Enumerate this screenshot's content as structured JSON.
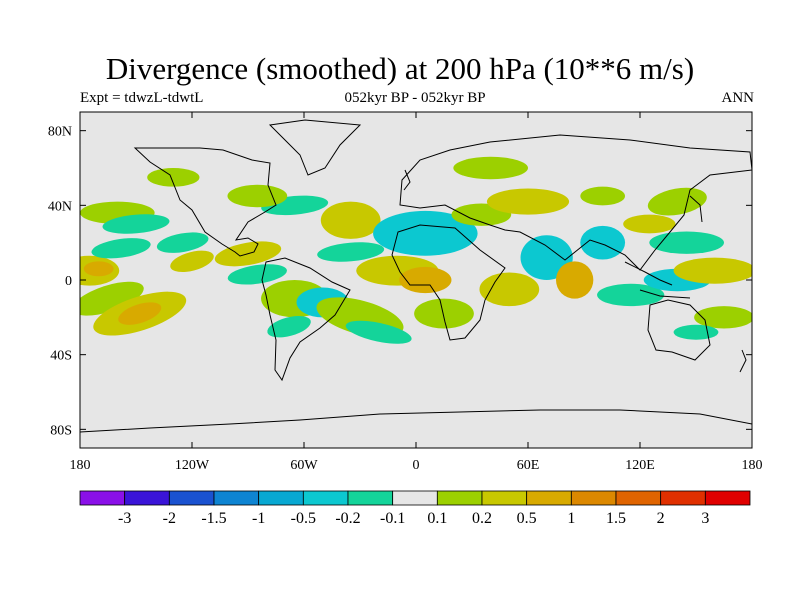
{
  "title": "Divergence (smoothed) at 200 hPa (10**6 m/s)",
  "subtitle_left": "Expt = tdwzL-tdwtL",
  "subtitle_center": "052kyr BP - 052kyr BP",
  "subtitle_right": "ANN",
  "chart_data": {
    "type": "heatmap",
    "title": "Divergence (smoothed) at 200 hPa (10**6 m/s)",
    "variable": "Divergence (smoothed) at 200 hPa",
    "units": "10**6 m/s",
    "period": "ANN",
    "experiment": "tdwzL-tdwtL",
    "x_axis": {
      "range": [
        -180,
        180
      ],
      "ticks": [
        -180,
        -120,
        -60,
        0,
        60,
        120,
        180
      ],
      "tick_labels": [
        "180",
        "120W",
        "60W",
        "0",
        "60E",
        "120E",
        "180"
      ]
    },
    "y_axis": {
      "range": [
        -90,
        90
      ],
      "ticks": [
        80,
        40,
        0,
        -40,
        -80
      ],
      "tick_labels": [
        "80N",
        "40N",
        "0",
        "40S",
        "80S"
      ]
    },
    "colorbar": {
      "labels": [
        "-3",
        "-2",
        "-1.5",
        "-1",
        "-0.5",
        "-0.2",
        "-0.1",
        "0.1",
        "0.2",
        "0.5",
        "1",
        "1.5",
        "2",
        "3"
      ],
      "colors": [
        "#8a10e8",
        "#3a14d8",
        "#1a52d0",
        "#0e84d2",
        "#08a8d2",
        "#0cc8d0",
        "#14d49a",
        "#e6e6e6",
        "#9cd000",
        "#c8c800",
        "#d8aa00",
        "#dc8800",
        "#e06400",
        "#e03000",
        "#e00000"
      ]
    },
    "regions": [
      {
        "lon": -175,
        "lat": 5,
        "rx": 16,
        "ry": 8,
        "class": 2,
        "rot": 0
      },
      {
        "lon": -170,
        "lat": 6,
        "rx": 8,
        "ry": 4,
        "class": 3,
        "rot": 0
      },
      {
        "lon": -165,
        "lat": -10,
        "rx": 20,
        "ry": 7,
        "class": 1,
        "rot": -18
      },
      {
        "lon": -148,
        "lat": -18,
        "rx": 26,
        "ry": 9,
        "class": 2,
        "rot": -18
      },
      {
        "lon": -148,
        "lat": -18,
        "rx": 12,
        "ry": 5,
        "class": 3,
        "rot": -18
      },
      {
        "lon": -158,
        "lat": 17,
        "rx": 16,
        "ry": 5,
        "class": -1,
        "rot": -8
      },
      {
        "lon": -160,
        "lat": 36,
        "rx": 20,
        "ry": 6,
        "class": 1,
        "rot": 0
      },
      {
        "lon": -150,
        "lat": 30,
        "rx": 18,
        "ry": 5,
        "class": -1,
        "rot": -5
      },
      {
        "lon": -120,
        "lat": 10,
        "rx": 12,
        "ry": 5,
        "class": 2,
        "rot": -15
      },
      {
        "lon": -125,
        "lat": 20,
        "rx": 14,
        "ry": 5,
        "class": -1,
        "rot": -10
      },
      {
        "lon": -90,
        "lat": 14,
        "rx": 18,
        "ry": 6,
        "class": 2,
        "rot": -10
      },
      {
        "lon": -85,
        "lat": 3,
        "rx": 16,
        "ry": 5,
        "class": -1,
        "rot": -8
      },
      {
        "lon": -65,
        "lat": -10,
        "rx": 18,
        "ry": 10,
        "class": 1,
        "rot": 0
      },
      {
        "lon": -50,
        "lat": -12,
        "rx": 14,
        "ry": 8,
        "class": -2,
        "rot": 0
      },
      {
        "lon": -68,
        "lat": -25,
        "rx": 12,
        "ry": 5,
        "class": -1,
        "rot": -15
      },
      {
        "lon": -30,
        "lat": -20,
        "rx": 24,
        "ry": 9,
        "class": 1,
        "rot": 15
      },
      {
        "lon": -20,
        "lat": -28,
        "rx": 18,
        "ry": 5,
        "class": -1,
        "rot": 12
      },
      {
        "lon": -35,
        "lat": 15,
        "rx": 18,
        "ry": 5,
        "class": -1,
        "rot": -5
      },
      {
        "lon": -35,
        "lat": 32,
        "rx": 16,
        "ry": 10,
        "class": 2,
        "rot": 0
      },
      {
        "lon": -65,
        "lat": 40,
        "rx": 18,
        "ry": 5,
        "class": -1,
        "rot": -5
      },
      {
        "lon": -85,
        "lat": 45,
        "rx": 16,
        "ry": 6,
        "class": 1,
        "rot": 0
      },
      {
        "lon": -130,
        "lat": 55,
        "rx": 14,
        "ry": 5,
        "class": 1,
        "rot": 0
      },
      {
        "lon": -10,
        "lat": 5,
        "rx": 22,
        "ry": 8,
        "class": 2,
        "rot": 0
      },
      {
        "lon": 5,
        "lat": 0,
        "rx": 14,
        "ry": 7,
        "class": 3,
        "rot": 0
      },
      {
        "lon": 15,
        "lat": -18,
        "rx": 16,
        "ry": 8,
        "class": 1,
        "rot": 0
      },
      {
        "lon": 5,
        "lat": 25,
        "rx": 28,
        "ry": 12,
        "class": -2,
        "rot": 0
      },
      {
        "lon": 35,
        "lat": 35,
        "rx": 16,
        "ry": 6,
        "class": 1,
        "rot": 0
      },
      {
        "lon": 50,
        "lat": -5,
        "rx": 16,
        "ry": 9,
        "class": 2,
        "rot": 0
      },
      {
        "lon": 70,
        "lat": 12,
        "rx": 14,
        "ry": 12,
        "class": -2,
        "rot": 0
      },
      {
        "lon": 60,
        "lat": 42,
        "rx": 22,
        "ry": 7,
        "class": 2,
        "rot": 0
      },
      {
        "lon": 40,
        "lat": 60,
        "rx": 20,
        "ry": 6,
        "class": 1,
        "rot": 0
      },
      {
        "lon": 85,
        "lat": 0,
        "rx": 10,
        "ry": 10,
        "class": 3,
        "rot": 0
      },
      {
        "lon": 100,
        "lat": 20,
        "rx": 12,
        "ry": 9,
        "class": -2,
        "rot": 0
      },
      {
        "lon": 115,
        "lat": -8,
        "rx": 18,
        "ry": 6,
        "class": -1,
        "rot": 0
      },
      {
        "lon": 140,
        "lat": 0,
        "rx": 18,
        "ry": 6,
        "class": -2,
        "rot": 0
      },
      {
        "lon": 160,
        "lat": 5,
        "rx": 22,
        "ry": 7,
        "class": 2,
        "rot": 0
      },
      {
        "lon": 145,
        "lat": 20,
        "rx": 20,
        "ry": 6,
        "class": -1,
        "rot": 0
      },
      {
        "lon": 140,
        "lat": 42,
        "rx": 16,
        "ry": 7,
        "class": 1,
        "rot": -10
      },
      {
        "lon": 165,
        "lat": -20,
        "rx": 16,
        "ry": 6,
        "class": 1,
        "rot": 0
      },
      {
        "lon": 150,
        "lat": -28,
        "rx": 12,
        "ry": 4,
        "class": -1,
        "rot": 0
      },
      {
        "lon": 125,
        "lat": 30,
        "rx": 14,
        "ry": 5,
        "class": 2,
        "rot": 0
      },
      {
        "lon": 100,
        "lat": 45,
        "rx": 12,
        "ry": 5,
        "class": 1,
        "rot": 0
      }
    ]
  }
}
